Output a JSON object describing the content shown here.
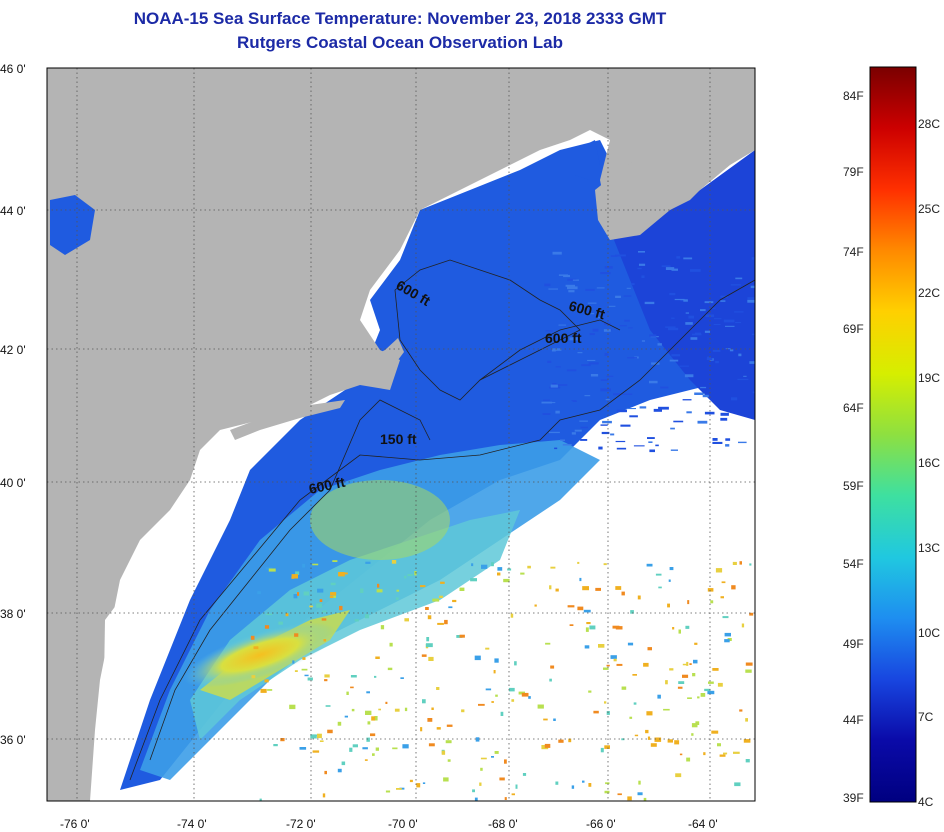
{
  "title": {
    "line1": "NOAA-15 Sea Surface Temperature:  November 23, 2018 2333 GMT",
    "line2": "Rutgers Coastal Ocean Observation Lab"
  },
  "map": {
    "lon_ticks": [
      "-76 0'",
      "-74 0'",
      "-72 0'",
      "-70 0'",
      "-68 0'",
      "-66 0'",
      "-64 0'"
    ],
    "lat_ticks": [
      "46 0'",
      "44 0'",
      "42 0'",
      "40 0'",
      "38 0'",
      "36 0'"
    ],
    "contour_labels": [
      "600 ft",
      "600 ft",
      "600 ft",
      "150 ft",
      "600 ft"
    ],
    "land_color": "#b4b4b4",
    "ocean_colors": {
      "cold": "#1a46d8",
      "mid": "#3fa0ee",
      "warm": "#c8e060",
      "hot": "#f0b020"
    }
  },
  "colorbar": {
    "fahrenheit": [
      "84F",
      "79F",
      "74F",
      "69F",
      "64F",
      "59F",
      "54F",
      "49F",
      "44F",
      "39F"
    ],
    "celsius": [
      "28C",
      "25C",
      "22C",
      "19C",
      "16C",
      "13C",
      "10C",
      "7C",
      "4C"
    ],
    "gradient_stops": [
      "#7a0000",
      "#cc0000",
      "#ff3000",
      "#ff8a00",
      "#ffd000",
      "#d6ee00",
      "#8ee040",
      "#3ee0a0",
      "#20c8e0",
      "#1e8ef0",
      "#1846e0",
      "#0a0aa8",
      "#000080"
    ]
  }
}
